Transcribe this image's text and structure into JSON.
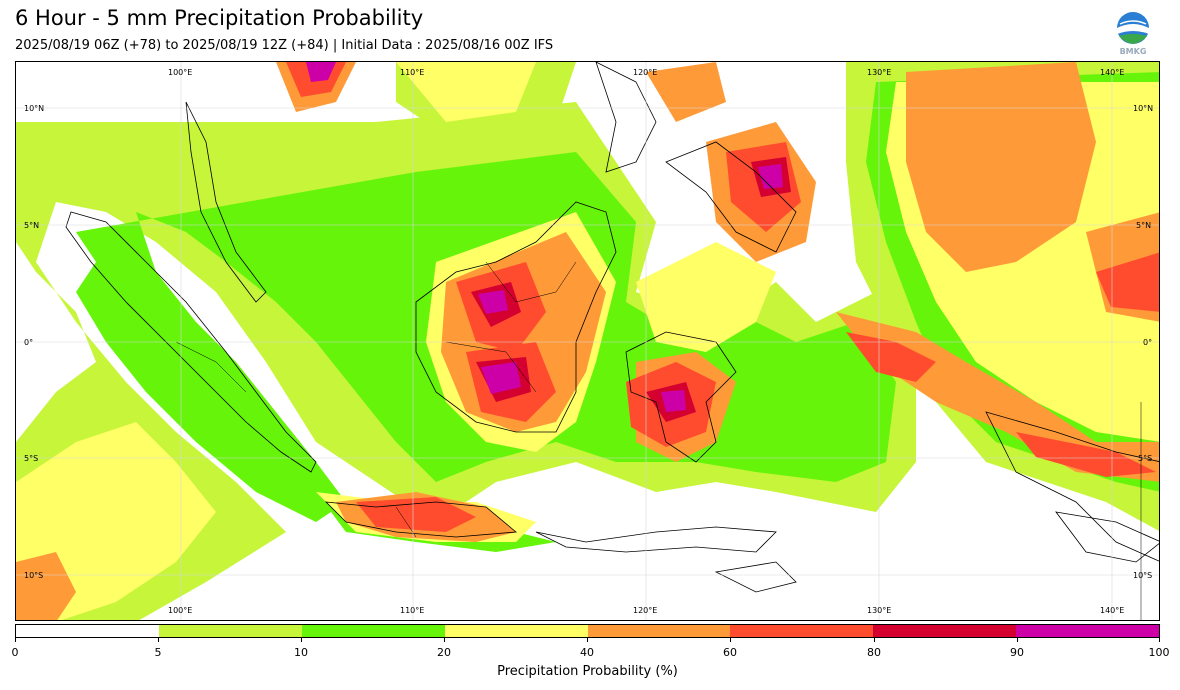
{
  "title": "6 Hour - 5 mm Precipitation Probability",
  "subtitle": "2025/08/19 06Z (+78) to 2025/08/19 12Z (+84) | Initial Data : 2025/08/16 00Z IFS",
  "logo_text": "BMKG",
  "map": {
    "lon_labels": [
      "100°E",
      "110°E",
      "120°E",
      "130°E",
      "140°E"
    ],
    "lat_labels": [
      "10°N",
      "5°N",
      "0°",
      "5°S",
      "10°S"
    ]
  },
  "colorbar": {
    "label": "Precipitation Probability (%)",
    "ticks": [
      "0",
      "5",
      "10",
      "20",
      "40",
      "60",
      "80",
      "90",
      "100"
    ],
    "colors": [
      "#ffffff",
      "#c6f53a",
      "#66f40a",
      "#ffff66",
      "#ff9a38",
      "#ff4c2e",
      "#d40030",
      "#cc00a6"
    ]
  }
}
